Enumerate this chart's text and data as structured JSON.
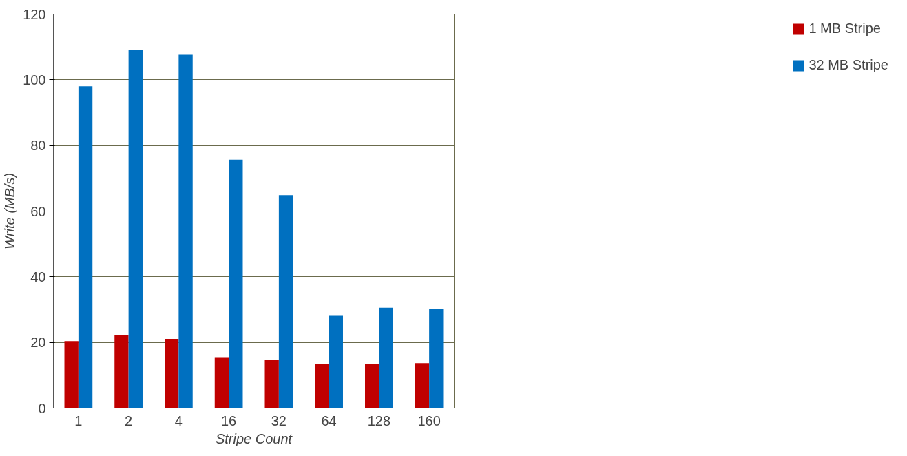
{
  "chart_data": {
    "type": "bar",
    "xlabel": "Stripe Count",
    "ylabel": "Write (MB/s)",
    "categories": [
      "1",
      "2",
      "4",
      "16",
      "32",
      "64",
      "128",
      "160"
    ],
    "series": [
      {
        "name": "1 MB Stripe",
        "color": "#c00000",
        "values": [
          20.4,
          22.2,
          21.1,
          15.3,
          14.6,
          13.5,
          13.3,
          13.7
        ]
      },
      {
        "name": "32 MB Stripe",
        "color": "#0070c0",
        "values": [
          98.0,
          109.2,
          107.6,
          75.7,
          64.9,
          28.1,
          30.6,
          30.1
        ]
      }
    ],
    "ylim": [
      0,
      120
    ],
    "yticks": [
      0,
      20,
      40,
      60,
      80,
      100,
      120
    ],
    "grid": "y",
    "legend": "right"
  }
}
